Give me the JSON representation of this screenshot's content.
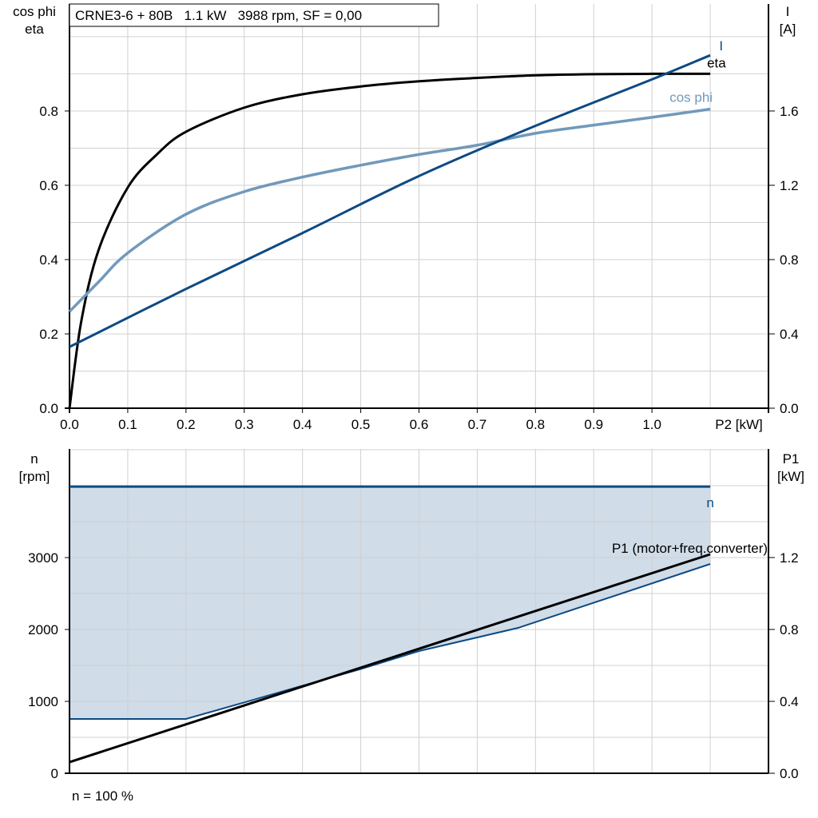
{
  "chart_data": [
    {
      "type": "line",
      "title": "CRNE3-6 + 80B   1.1 kW   3988 rpm, SF = 0,00",
      "xlabel": "P2 [kW]",
      "ylabel_left": [
        "cos phi",
        "eta"
      ],
      "ylabel_right": [
        "I",
        "[A]"
      ],
      "xlim": [
        0,
        1.2
      ],
      "ylim_left": [
        0,
        1.088
      ],
      "ylim_right": [
        0,
        2.176
      ],
      "x_ticks": [
        "0.0",
        "0.1",
        "0.2",
        "0.3",
        "0.4",
        "0.5",
        "0.6",
        "0.7",
        "0.8",
        "0.9",
        "1.0"
      ],
      "y_ticks_left": [
        "0.0",
        "0.2",
        "0.4",
        "0.6",
        "0.8"
      ],
      "y_ticks_right": [
        "0.0",
        "0.4",
        "0.8",
        "1.2",
        "1.6"
      ],
      "grid": true,
      "series": [
        {
          "name": "eta",
          "axis": "left",
          "color": "#000000",
          "x": [
            0,
            0.02,
            0.05,
            0.1,
            0.15,
            0.2,
            0.3,
            0.4,
            0.5,
            0.6,
            0.7,
            0.8,
            0.9,
            1.0,
            1.1
          ],
          "y": [
            0,
            0.232,
            0.426,
            0.594,
            0.683,
            0.744,
            0.809,
            0.845,
            0.866,
            0.88,
            0.889,
            0.896,
            0.899,
            0.9,
            0.9
          ]
        },
        {
          "name": "cos phi",
          "axis": "left",
          "color": "#7199bb",
          "x": [
            0,
            0.05,
            0.1,
            0.2,
            0.3,
            0.4,
            0.5,
            0.6,
            0.7,
            0.8,
            0.9,
            1.0,
            1.1
          ],
          "y": [
            0.26,
            0.34,
            0.418,
            0.522,
            0.583,
            0.622,
            0.654,
            0.683,
            0.708,
            0.74,
            0.762,
            0.783,
            0.805
          ]
        },
        {
          "name": "I",
          "axis": "right",
          "color": "#0d4a83",
          "x": [
            0,
            0.2,
            0.4,
            0.6,
            0.8,
            1.0,
            1.1
          ],
          "y": [
            0.33,
            0.642,
            0.943,
            1.25,
            1.52,
            1.77,
            1.9
          ]
        }
      ]
    },
    {
      "type": "line",
      "ylabel_left": [
        "n",
        "[rpm]"
      ],
      "ylabel_right": [
        "P1",
        "[kW]"
      ],
      "xlim": [
        0,
        1.2
      ],
      "ylim_left": [
        0,
        4511
      ],
      "ylim_right": [
        0,
        1.804
      ],
      "y_ticks_left": [
        "0",
        "1000",
        "2000",
        "3000"
      ],
      "y_ticks_right": [
        "0.0",
        "0.4",
        "0.8",
        "1.2"
      ],
      "grid": true,
      "footnote": "n = 100 %",
      "series": [
        {
          "name": "n",
          "axis": "left",
          "color": "#0d4a83",
          "x": [
            0,
            1.1
          ],
          "y": [
            3988,
            3988
          ]
        },
        {
          "name": "P1 (motor+freq.converter)",
          "axis": "right",
          "color": "#000000",
          "x": [
            0,
            1.1
          ],
          "y": [
            0.062,
            1.218
          ]
        }
      ],
      "operating_range": {
        "color": "#d0dce8",
        "lower_x": [
          0,
          0.2,
          0.3,
          0.5,
          0.6,
          0.77,
          1.1
        ],
        "lower_y": [
          756,
          756,
          985,
          1450,
          1700,
          2022,
          2911
        ],
        "upper_y": 3988
      }
    }
  ]
}
